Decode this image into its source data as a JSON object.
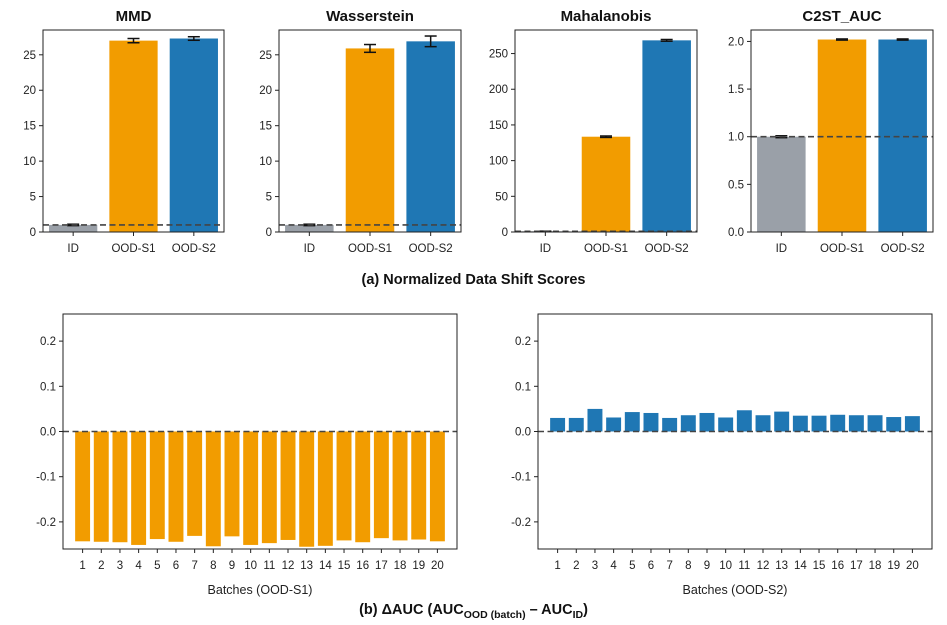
{
  "captions": {
    "a": "(a) Normalized Data Shift Scores",
    "b_prefix": "(b) ΔAUC (AUC",
    "b_sub1": "OOD (batch)",
    "b_mid": " – AUC",
    "b_sub2": "ID",
    "b_suffix": ")"
  },
  "colors": {
    "id": "#9aa0a8",
    "ood_s1": "#f29c00",
    "ood_s2": "#1f77b4",
    "reference_line": "#444444"
  },
  "chart_data": [
    {
      "type": "bar",
      "title": "MMD",
      "categories": [
        "ID",
        "OOD-S1",
        "OOD-S2"
      ],
      "values": [
        1.0,
        27.0,
        27.3
      ],
      "errors": [
        0.1,
        0.3,
        0.25
      ],
      "ylim": [
        0,
        28.5
      ],
      "yticks": [
        0,
        5,
        10,
        15,
        20,
        25
      ],
      "ytick_labels": [
        "0",
        "5",
        "10",
        "15",
        "20",
        "25"
      ],
      "reference_line": 1.0,
      "grid": false
    },
    {
      "type": "bar",
      "title": "Wasserstein",
      "categories": [
        "ID",
        "OOD-S1",
        "OOD-S2"
      ],
      "values": [
        1.0,
        25.9,
        26.9
      ],
      "errors": [
        0.1,
        0.55,
        0.75
      ],
      "ylim": [
        0,
        28.5
      ],
      "yticks": [
        0,
        5,
        10,
        15,
        20,
        25
      ],
      "ytick_labels": [
        "0",
        "5",
        "10",
        "15",
        "20",
        "25"
      ],
      "reference_line": 1.0,
      "grid": false
    },
    {
      "type": "bar",
      "title": "Mahalanobis",
      "categories": [
        "ID",
        "OOD-S1",
        "OOD-S2"
      ],
      "values": [
        1.0,
        133.5,
        268.5
      ],
      "errors": [
        0.2,
        1.0,
        1.2
      ],
      "ylim": [
        0,
        283
      ],
      "yticks": [
        0,
        50,
        100,
        150,
        200,
        250
      ],
      "ytick_labels": [
        "0",
        "50",
        "100",
        "150",
        "200",
        "250"
      ],
      "reference_line": 1.0,
      "grid": false
    },
    {
      "type": "bar",
      "title": "C2ST_AUC",
      "categories": [
        "ID",
        "OOD-S1",
        "OOD-S2"
      ],
      "values": [
        1.0,
        2.02,
        2.02
      ],
      "errors": [
        0.01,
        0.006,
        0.006
      ],
      "ylim": [
        0,
        2.12
      ],
      "yticks": [
        0,
        0.5,
        1.0,
        1.5,
        2.0
      ],
      "ytick_labels": [
        "0.0",
        "0.5",
        "1.0",
        "1.5",
        "2.0"
      ],
      "reference_line": 1.0,
      "grid": false
    },
    {
      "type": "bar",
      "xlabel": "Batches (OOD-S1)",
      "categories": [
        "1",
        "2",
        "3",
        "4",
        "5",
        "6",
        "7",
        "8",
        "9",
        "10",
        "11",
        "12",
        "13",
        "14",
        "15",
        "16",
        "17",
        "18",
        "19",
        "20"
      ],
      "values": [
        -0.243,
        -0.244,
        -0.245,
        -0.251,
        -0.238,
        -0.244,
        -0.231,
        -0.254,
        -0.232,
        -0.251,
        -0.247,
        -0.24,
        -0.255,
        -0.253,
        -0.241,
        -0.245,
        -0.236,
        -0.241,
        -0.239,
        -0.243
      ],
      "ylim": [
        -0.26,
        0.26
      ],
      "yticks": [
        -0.2,
        -0.1,
        0.0,
        0.1,
        0.2
      ],
      "ytick_labels": [
        "-0.2",
        "-0.1",
        "0.0",
        "0.1",
        "0.2"
      ],
      "reference_line": 0.0,
      "grid": false
    },
    {
      "type": "bar",
      "xlabel": "Batches (OOD-S2)",
      "categories": [
        "1",
        "2",
        "3",
        "4",
        "5",
        "6",
        "7",
        "8",
        "9",
        "10",
        "11",
        "12",
        "13",
        "14",
        "15",
        "16",
        "17",
        "18",
        "19",
        "20"
      ],
      "values": [
        0.03,
        0.03,
        0.05,
        0.031,
        0.043,
        0.041,
        0.03,
        0.036,
        0.041,
        0.031,
        0.047,
        0.036,
        0.044,
        0.035,
        0.035,
        0.037,
        0.036,
        0.036,
        0.032,
        0.034
      ],
      "ylim": [
        -0.26,
        0.26
      ],
      "yticks": [
        -0.2,
        -0.1,
        0.0,
        0.1,
        0.2
      ],
      "ytick_labels": [
        "-0.2",
        "-0.1",
        "0.0",
        "0.1",
        "0.2"
      ],
      "reference_line": 0.0,
      "grid": false
    }
  ]
}
